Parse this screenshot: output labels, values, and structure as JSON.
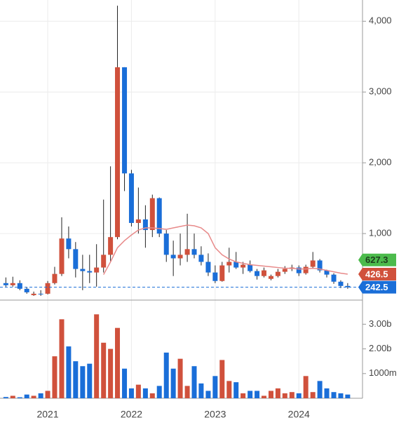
{
  "chart_data": {
    "type": "candlestick",
    "x": [
      2020.5,
      2020.583,
      2020.667,
      2020.75,
      2020.833,
      2020.917,
      2021,
      2021.083,
      2021.167,
      2021.25,
      2021.333,
      2021.417,
      2021.5,
      2021.583,
      2021.667,
      2021.75,
      2021.833,
      2021.917,
      2022,
      2022.083,
      2022.167,
      2022.25,
      2022.333,
      2022.417,
      2022.5,
      2022.583,
      2022.667,
      2022.75,
      2022.833,
      2022.917,
      2023,
      2023.083,
      2023.167,
      2023.25,
      2023.333,
      2023.417,
      2023.5,
      2023.583,
      2023.667,
      2023.75,
      2023.833,
      2023.917,
      2024,
      2024.083,
      2024.167,
      2024.25,
      2024.333,
      2024.417,
      2024.5,
      2024.583
    ],
    "open": [
      300,
      270,
      300,
      220,
      130,
      150,
      150,
      300,
      430,
      930,
      780,
      500,
      470,
      450,
      520,
      700,
      950,
      3350,
      1850,
      1150,
      1200,
      1050,
      1500,
      1000,
      700,
      650,
      700,
      780,
      700,
      600,
      450,
      330,
      550,
      600,
      520,
      560,
      470,
      400,
      360,
      400,
      460,
      500,
      520,
      440,
      530,
      620,
      480,
      420,
      320,
      260
    ],
    "high": [
      380,
      390,
      340,
      240,
      180,
      200,
      330,
      530,
      1230,
      1100,
      880,
      700,
      700,
      850,
      1480,
      1950,
      4220,
      3350,
      1900,
      1650,
      1400,
      1550,
      1510,
      1050,
      900,
      1000,
      1280,
      1000,
      820,
      720,
      550,
      600,
      800,
      740,
      600,
      620,
      500,
      520,
      420,
      500,
      540,
      560,
      550,
      560,
      740,
      640,
      490,
      440,
      340,
      300
    ],
    "low": [
      250,
      250,
      200,
      150,
      120,
      120,
      140,
      280,
      400,
      650,
      380,
      200,
      300,
      250,
      450,
      600,
      920,
      1600,
      1100,
      1000,
      800,
      950,
      950,
      600,
      400,
      550,
      600,
      650,
      550,
      400,
      300,
      320,
      450,
      500,
      430,
      450,
      350,
      380,
      340,
      380,
      430,
      470,
      400,
      420,
      500,
      450,
      380,
      290,
      230,
      220
    ],
    "close": [
      270,
      300,
      220,
      170,
      150,
      140,
      300,
      430,
      930,
      780,
      500,
      470,
      450,
      520,
      700,
      950,
      3350,
      1850,
      1150,
      1200,
      1050,
      1500,
      1000,
      700,
      650,
      700,
      780,
      700,
      600,
      450,
      330,
      550,
      600,
      520,
      560,
      470,
      400,
      480,
      400,
      460,
      500,
      520,
      440,
      530,
      620,
      480,
      420,
      320,
      260,
      242.5
    ],
    "up_color": "#d0513c",
    "down_color": "#1a6ed8",
    "series": [
      {
        "color": "#e88a8a",
        "values": [
          null,
          null,
          null,
          null,
          null,
          null,
          null,
          null,
          null,
          null,
          null,
          null,
          null,
          null,
          420,
          600,
          800,
          900,
          980,
          1050,
          1080,
          1080,
          1070,
          1060,
          1080,
          1100,
          1120,
          1110,
          1080,
          1000,
          800,
          700,
          640,
          600,
          580,
          560,
          550,
          540,
          530,
          520,
          510,
          510,
          500,
          500,
          510,
          500,
          480,
          460,
          440,
          426.5
        ]
      }
    ],
    "markers": [
      {
        "value": 627.3,
        "color": "#4cbb4c"
      },
      {
        "value": 426.5,
        "color": "#d0513c"
      },
      {
        "value": 242.5,
        "color": "#1a6ed8"
      }
    ],
    "last_line": true,
    "xlim": [
      2020.43,
      2024.76
    ],
    "xticks": [
      2021,
      2022,
      2023,
      2024
    ],
    "ylim": [
      60,
      4300
    ],
    "yticks": [
      {
        "value": 1000,
        "label": "1,000"
      },
      {
        "value": 2000,
        "label": "2,000"
      },
      {
        "value": 3000,
        "label": "3,000"
      },
      {
        "value": 4000,
        "label": "4,000"
      }
    ],
    "grid": true,
    "volume": {
      "values": [
        50000000,
        100000000,
        40000000,
        150000000,
        100000000,
        200000000,
        300000000,
        1700000000,
        3200000000,
        2100000000,
        1500000000,
        1300000000,
        1400000000,
        3400000000,
        2250000000,
        2000000000,
        2850000000,
        1200000000,
        400000000,
        550000000,
        400000000,
        200000000,
        500000000,
        1850000000,
        1200000000,
        1600000000,
        500000000,
        1300000000,
        600000000,
        300000000,
        900000000,
        1550000000,
        700000000,
        650000000,
        200000000,
        300000000,
        300000000,
        100000000,
        300000000,
        400000000,
        200000000,
        250000000,
        200000000,
        900000000,
        250000000,
        700000000,
        400000000,
        250000000,
        200000000,
        150000000
      ],
      "ylim": [
        0,
        3920000000
      ],
      "yticks": [
        {
          "value": 1000000000,
          "label": "1000m"
        },
        {
          "value": 2000000000,
          "label": "2.00b"
        },
        {
          "value": 3000000000,
          "label": "3.00b"
        }
      ]
    }
  }
}
